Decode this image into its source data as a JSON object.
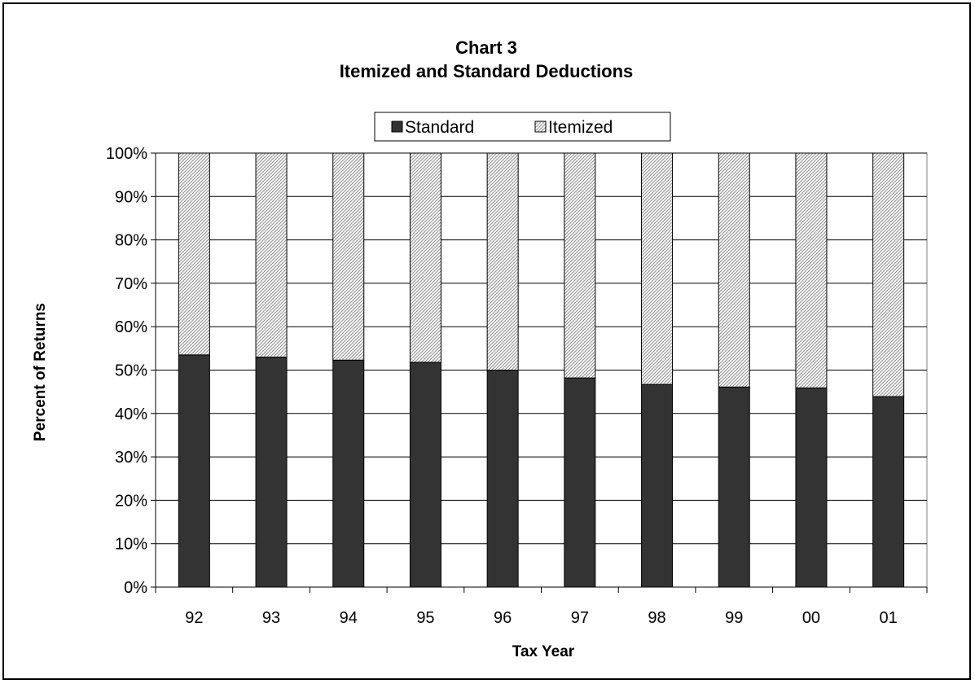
{
  "chart_data": {
    "type": "bar",
    "stacked": true,
    "percent": true,
    "title": "Chart 3",
    "subtitle": "Itemized and Standard Deductions",
    "xlabel": "Tax Year",
    "ylabel": "Percent of Returns",
    "categories": [
      "92",
      "93",
      "94",
      "95",
      "96",
      "97",
      "98",
      "99",
      "00",
      "01"
    ],
    "series": [
      {
        "name": "Standard",
        "values": [
          53.5,
          53.0,
          52.3,
          51.8,
          50.0,
          48.2,
          46.7,
          46.1,
          45.9,
          43.9
        ],
        "color": "#333333",
        "pattern": "solid"
      },
      {
        "name": "Itemized",
        "values": [
          46.5,
          47.0,
          47.7,
          48.2,
          50.0,
          51.8,
          53.3,
          53.9,
          54.1,
          56.1
        ],
        "color": "#ffffff",
        "pattern": "hatched"
      }
    ],
    "yticks": [
      "0%",
      "10%",
      "20%",
      "30%",
      "40%",
      "50%",
      "60%",
      "70%",
      "80%",
      "90%",
      "100%"
    ],
    "ylim": [
      0,
      100
    ],
    "grid": true,
    "legend_position": "top-center"
  }
}
